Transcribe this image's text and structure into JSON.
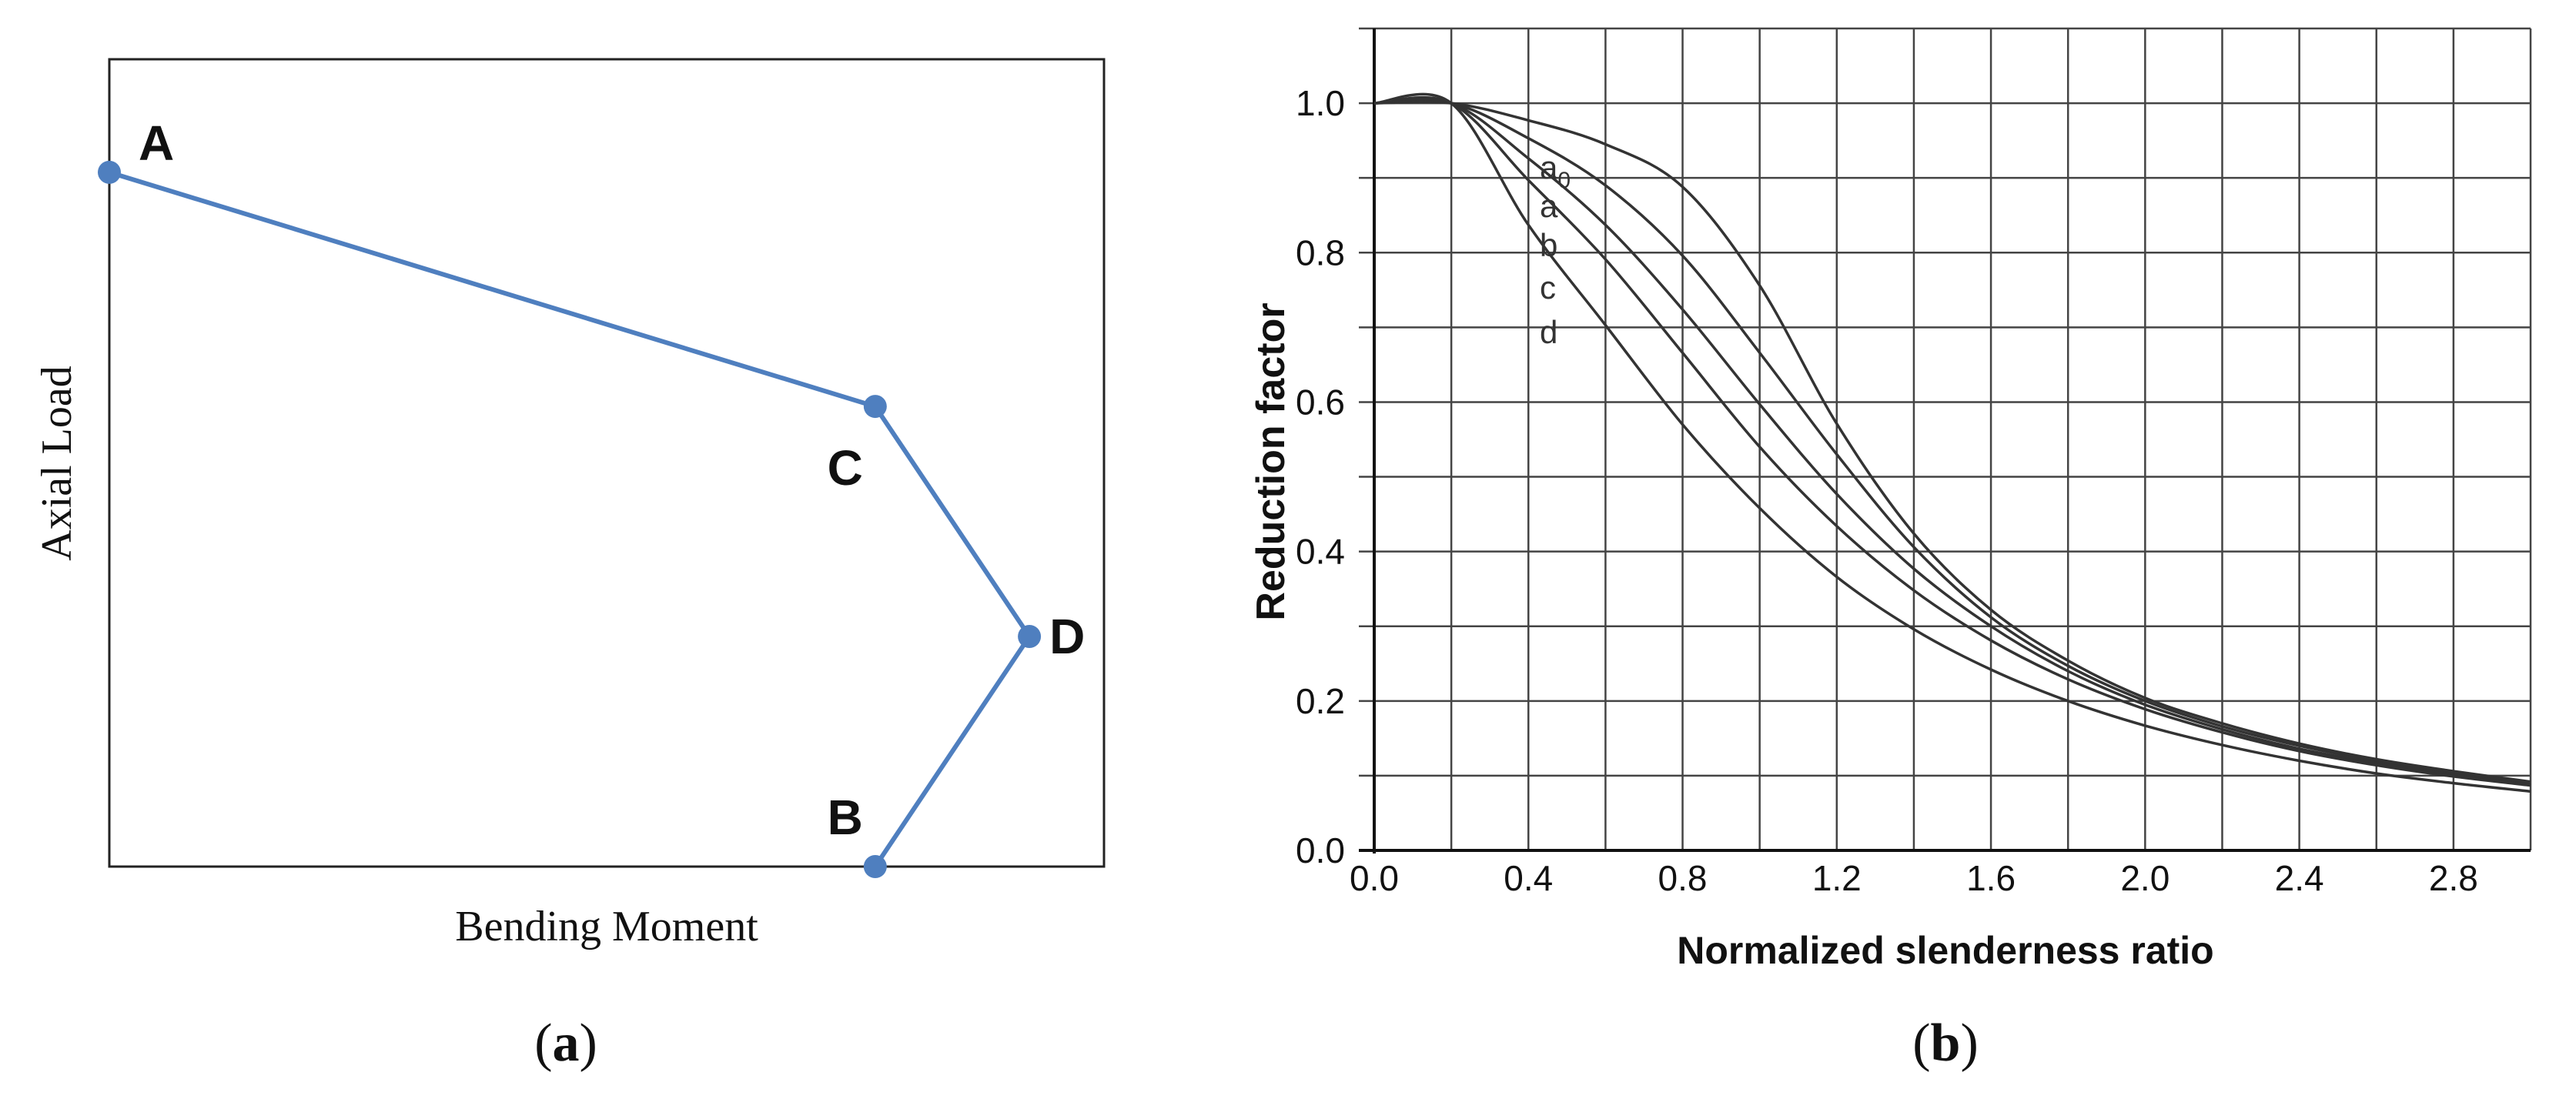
{
  "chart_data": [
    {
      "panel_label": "(a)",
      "type": "line",
      "xlabel": "Bending Moment",
      "ylabel": "Axial Load",
      "grid": false,
      "axis_ticks": false,
      "xlim": [
        0,
        1
      ],
      "ylim": [
        0,
        1
      ],
      "line_color": "#4f7fbf",
      "series": [
        {
          "points": [
            {
              "label": "A",
              "x": 0.0,
              "y": 0.86
            },
            {
              "label": "C",
              "x": 0.77,
              "y": 0.57
            },
            {
              "label": "D",
              "x": 0.925,
              "y": 0.285
            },
            {
              "label": "B",
              "x": 0.77,
              "y": 0.0
            }
          ]
        }
      ]
    },
    {
      "panel_label": "(b)",
      "type": "line",
      "xlabel": "Normalized slenderness ratio",
      "ylabel": "Reduction factor",
      "grid": true,
      "xlim": [
        0,
        3.0
      ],
      "ylim": [
        0,
        1.1
      ],
      "xticks": [
        "0.0",
        "0.4",
        "0.8",
        "1.2",
        "1.6",
        "2.0",
        "2.4",
        "2.8"
      ],
      "yticks": [
        "0.0",
        "0.2",
        "0.4",
        "0.6",
        "0.8",
        "1.0"
      ],
      "line_color": "#333333",
      "x": [
        0.0,
        0.2,
        0.4,
        0.6,
        0.8,
        1.0,
        1.2,
        1.4,
        1.6,
        1.8,
        2.0,
        2.2,
        2.4,
        2.6,
        2.8,
        3.0
      ],
      "series": [
        {
          "label": "a",
          "label_sub": "0",
          "values": [
            1.0,
            1.0,
            0.977,
            0.945,
            0.888,
            0.756,
            0.571,
            0.424,
            0.322,
            0.254,
            0.204,
            0.17,
            0.143,
            0.122,
            0.106,
            0.092
          ]
        },
        {
          "label": "a",
          "label_sub": "",
          "values": [
            1.0,
            1.0,
            0.953,
            0.89,
            0.796,
            0.666,
            0.53,
            0.406,
            0.312,
            0.247,
            0.2,
            0.166,
            0.14,
            0.12,
            0.104,
            0.091
          ]
        },
        {
          "label": "b",
          "label_sub": "",
          "values": [
            1.0,
            1.0,
            0.926,
            0.837,
            0.724,
            0.597,
            0.477,
            0.377,
            0.3,
            0.24,
            0.195,
            0.162,
            0.136,
            0.117,
            0.101,
            0.088
          ]
        },
        {
          "label": "c",
          "label_sub": "",
          "values": [
            1.0,
            1.0,
            0.897,
            0.791,
            0.666,
            0.54,
            0.434,
            0.348,
            0.281,
            0.229,
            0.189,
            0.158,
            0.133,
            0.114,
            0.099,
            0.087
          ]
        },
        {
          "label": "d",
          "label_sub": "",
          "values": [
            1.0,
            1.0,
            0.837,
            0.703,
            0.57,
            0.458,
            0.366,
            0.296,
            0.242,
            0.2,
            0.167,
            0.141,
            0.12,
            0.103,
            0.09,
            0.079
          ]
        }
      ]
    }
  ]
}
